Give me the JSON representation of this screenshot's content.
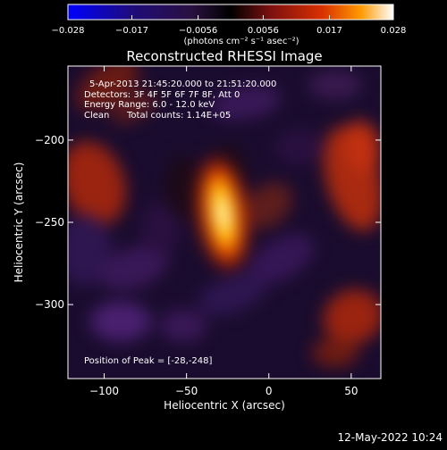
{
  "chart_data": {
    "type": "heatmap",
    "title": "Reconstructed RHESSI Image",
    "xlabel": "Heliocentric X (arcsec)",
    "ylabel": "Heliocentric Y (arcsec)",
    "xlim": [
      -122,
      68
    ],
    "ylim": [
      -345,
      -155
    ],
    "x_ticks": [
      -100,
      -50,
      0,
      50
    ],
    "y_ticks": [
      -200,
      -250,
      -300
    ],
    "x_tick_labels": [
      "−100",
      "−50",
      "0",
      "50"
    ],
    "y_tick_labels": [
      "−200",
      "−250",
      "−300"
    ],
    "colorbar": {
      "range": [
        -0.028,
        0.028
      ],
      "ticks": [
        -0.028,
        -0.017,
        -0.0056,
        0.0056,
        0.017,
        0.028
      ],
      "tick_labels": [
        "−0.028",
        "−0.017",
        "−0.0056",
        "0.0056",
        "0.017",
        "0.028"
      ],
      "units_label": "(photons cm⁻² s⁻¹ asec⁻²)"
    },
    "annotations": {
      "time_range": "5-Apr-2013 21:45:20.000 to 21:51:20.000",
      "detectors": "Detectors: 3F 4F 5F 6F 7F 8F, Att 0",
      "energy": "Energy Range: 6.0 - 12.0 keV",
      "method": "Clean",
      "counts": "Total counts: 1.14E+05",
      "peak": "Position of Peak = [-28,-248]"
    },
    "peak": {
      "x": -28,
      "y": -248
    },
    "colormap": [
      "#0000ff",
      "#1e0c78",
      "#321050",
      "#000000",
      "#7a1010",
      "#d03000",
      "#ff9000",
      "#ffffff"
    ]
  },
  "footer": {
    "date": "12-May-2022 10:24"
  }
}
